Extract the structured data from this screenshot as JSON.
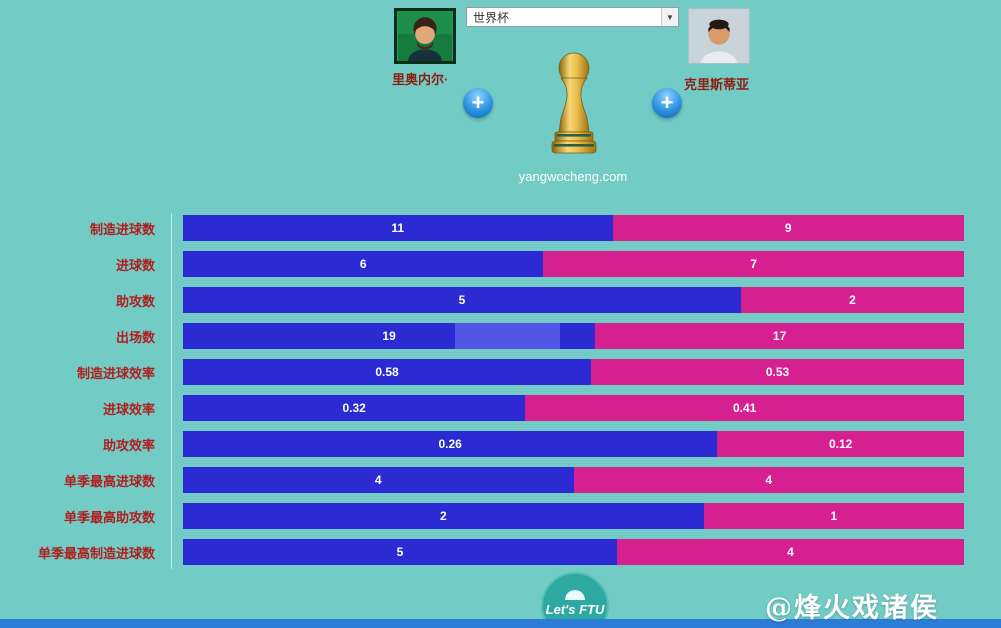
{
  "header": {
    "left_player": {
      "name": "里奥内尔·"
    },
    "right_player": {
      "name": "克里斯蒂亚"
    },
    "competition_select": {
      "value": "世界杯"
    },
    "site": "yangwocheng.com",
    "plus_label": "+"
  },
  "chart_data": {
    "type": "bar",
    "orientation": "horizontal_stacked",
    "categories": [
      "制造进球数",
      "进球数",
      "助攻数",
      "出场数",
      "制造进球效率",
      "进球效率",
      "助攻效率",
      "单季最高进球数",
      "单季最高助攻数",
      "单季最高制造进球数"
    ],
    "series": [
      {
        "name": "里奥内尔·",
        "color": "#2b2ad3",
        "values": [
          11,
          6,
          5,
          19,
          0.58,
          0.32,
          0.26,
          4,
          2,
          5
        ]
      },
      {
        "name": "克里斯蒂亚",
        "color": "#d6208f",
        "values": [
          9,
          7,
          2,
          17,
          0.53,
          0.41,
          0.12,
          4,
          1,
          4
        ]
      }
    ],
    "legend": "none",
    "value_labels": "inside_center_white"
  },
  "footer": {
    "logo_text": "Let's FTU",
    "watermark": "@烽火戏诸侯"
  },
  "colors": {
    "background": "#72ccc5",
    "bar_left": "#2b2ad3",
    "bar_right": "#d6208f",
    "label_red": "#b01e1e",
    "bottom_bar": "#2b7dd8"
  }
}
